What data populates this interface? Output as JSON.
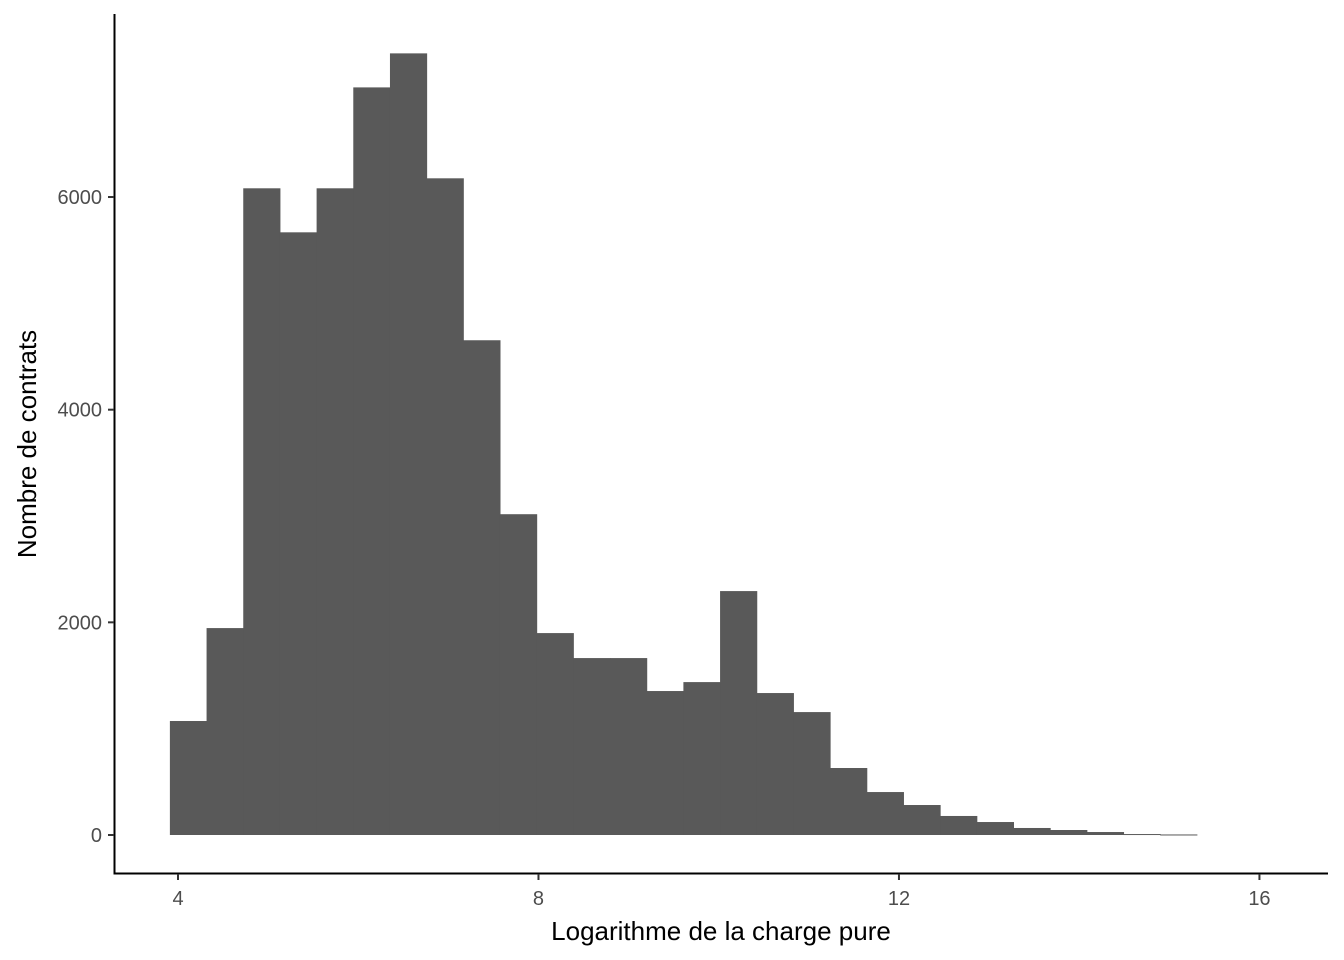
{
  "chart_data": {
    "type": "bar",
    "subtype": "histogram",
    "title": "",
    "xlabel": "Logarithme de la charge pure",
    "ylabel": "Nombre de contrats",
    "bin_start": 3.91,
    "bin_width": 0.407,
    "values": [
      1072,
      1946,
      6082,
      5668,
      6082,
      7031,
      7351,
      6176,
      4653,
      3017,
      1899,
      1664,
      1664,
      1354,
      1438,
      2294,
      1335,
      1156,
      630,
      404,
      282,
      179,
      122,
      66,
      47,
      28,
      9,
      5
    ],
    "xlim": [
      3.3,
      16.8
    ],
    "ylim": [
      -350,
      7700
    ],
    "x_ticks": [
      "4",
      "8",
      "12",
      "16"
    ],
    "x_tick_values": [
      4,
      8,
      12,
      16
    ],
    "y_ticks": [
      "0",
      "2000",
      "4000",
      "6000"
    ],
    "y_tick_values": [
      0,
      2000,
      4000,
      6000
    ],
    "grid": false,
    "bar_color": "#595959",
    "legend": "none"
  }
}
